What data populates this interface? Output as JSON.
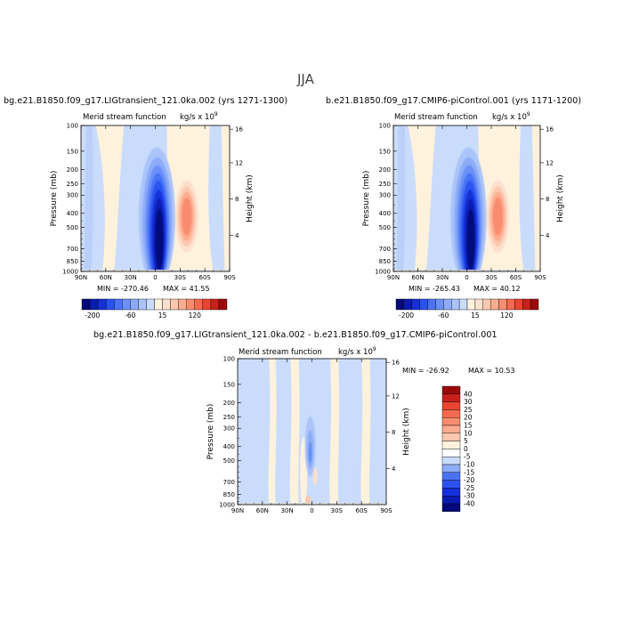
{
  "figure": {
    "title": "JJA",
    "colors": {
      "scale": [
        "#05097a",
        "#0a1cb0",
        "#1530d8",
        "#2a52f0",
        "#4a72f5",
        "#6b90f7",
        "#8cabf8",
        "#aac4f9",
        "#cadcfb",
        "#fff2dd",
        "#fde0cc",
        "#fcc7af",
        "#fbab8e",
        "#f98c6e",
        "#f56a4e",
        "#e84530",
        "#c8201a",
        "#9a0a0a"
      ]
    }
  },
  "chart_data": [
    {
      "type": "heatmap",
      "panel": "left",
      "title": "bg.e21.B1850.f09_g17.LIGtransient_121.0ka.002 (yrs 1271-1300)",
      "subtitle": "Merid stream function",
      "units": "kg/s x 10",
      "units_exp": "9",
      "ylabel": "Pressure (mb)",
      "ylabel_right": "Height (km)",
      "y_ticks": [
        "100",
        "150",
        "200",
        "250",
        "300",
        "400",
        "500",
        "700",
        "850",
        "1000"
      ],
      "y_tick_values": [
        100,
        150,
        200,
        250,
        300,
        400,
        500,
        700,
        850,
        1000
      ],
      "x_ticks": [
        "90N",
        "60N",
        "30N",
        "0",
        "30S",
        "60S",
        "90S"
      ],
      "height_ticks": [
        "16",
        "12",
        "8",
        "4"
      ],
      "height_tick_values": [
        16,
        12,
        8,
        4
      ],
      "min": -270.46,
      "max": 41.55,
      "min_label": "MIN = -270.46",
      "max_label": "MAX =  41.55",
      "colorbar_labels": [
        "-200",
        "-60",
        "15",
        "120"
      ],
      "features": [
        {
          "kind": "cell",
          "sign": "negative",
          "center_lat": -5,
          "peak": -270.46
        },
        {
          "kind": "cell",
          "sign": "positive",
          "center_lat": -40,
          "peak": 41.55
        }
      ]
    },
    {
      "type": "heatmap",
      "panel": "right",
      "title": "b.e21.B1850.f09_g17.CMIP6-piControl.001 (yrs 1171-1200)",
      "subtitle": "Merid stream function",
      "units": "kg/s x 10",
      "units_exp": "9",
      "ylabel": "Pressure (mb)",
      "ylabel_right": "Height (km)",
      "y_ticks": [
        "100",
        "150",
        "200",
        "250",
        "300",
        "400",
        "500",
        "700",
        "850",
        "1000"
      ],
      "y_tick_values": [
        100,
        150,
        200,
        250,
        300,
        400,
        500,
        700,
        850,
        1000
      ],
      "x_ticks": [
        "90N",
        "60N",
        "30N",
        "0",
        "30S",
        "60S",
        "90S"
      ],
      "height_ticks": [
        "16",
        "12",
        "8",
        "4"
      ],
      "height_tick_values": [
        16,
        12,
        8,
        4
      ],
      "min": -265.43,
      "max": 40.12,
      "min_label": "MIN = -265.43",
      "max_label": "MAX =  40.12",
      "colorbar_labels": [
        "-200",
        "-60",
        "15",
        "120"
      ],
      "features": [
        {
          "kind": "cell",
          "sign": "negative",
          "center_lat": -5,
          "peak": -265.43
        },
        {
          "kind": "cell",
          "sign": "positive",
          "center_lat": -40,
          "peak": 40.12
        }
      ]
    },
    {
      "type": "heatmap",
      "panel": "diff",
      "title": "bg.e21.B1850.f09_g17.LIGtransient_121.0ka.002 - b.e21.B1850.f09_g17.CMIP6-piControl.001",
      "subtitle": "Merid stream function",
      "units": "kg/s x 10",
      "units_exp": "9",
      "ylabel": "Pressure (mb)",
      "ylabel_right": "Height (km)",
      "y_ticks": [
        "100",
        "150",
        "200",
        "250",
        "300",
        "400",
        "500",
        "700",
        "850",
        "1000"
      ],
      "y_tick_values": [
        100,
        150,
        200,
        250,
        300,
        400,
        500,
        700,
        850,
        1000
      ],
      "x_ticks": [
        "90N",
        "60N",
        "30N",
        "0",
        "30S",
        "60S",
        "90S"
      ],
      "height_ticks": [
        "16",
        "12",
        "8",
        "4"
      ],
      "height_tick_values": [
        16,
        12,
        8,
        4
      ],
      "min": -26.92,
      "max": 10.53,
      "min_label": "MIN = -26.92",
      "max_label": "MAX =  10.53",
      "colorbar_labels": [
        "40",
        "30",
        "25",
        "20",
        "15",
        "10",
        "5",
        "0",
        "-5",
        "-10",
        "-15",
        "-20",
        "-25",
        "-30",
        "-40"
      ],
      "features": [
        {
          "kind": "cell",
          "sign": "negative",
          "center_lat": 0,
          "peak": -26.92
        },
        {
          "kind": "cell",
          "sign": "positive",
          "center_lat": 12,
          "peak": 10.53
        }
      ]
    }
  ]
}
